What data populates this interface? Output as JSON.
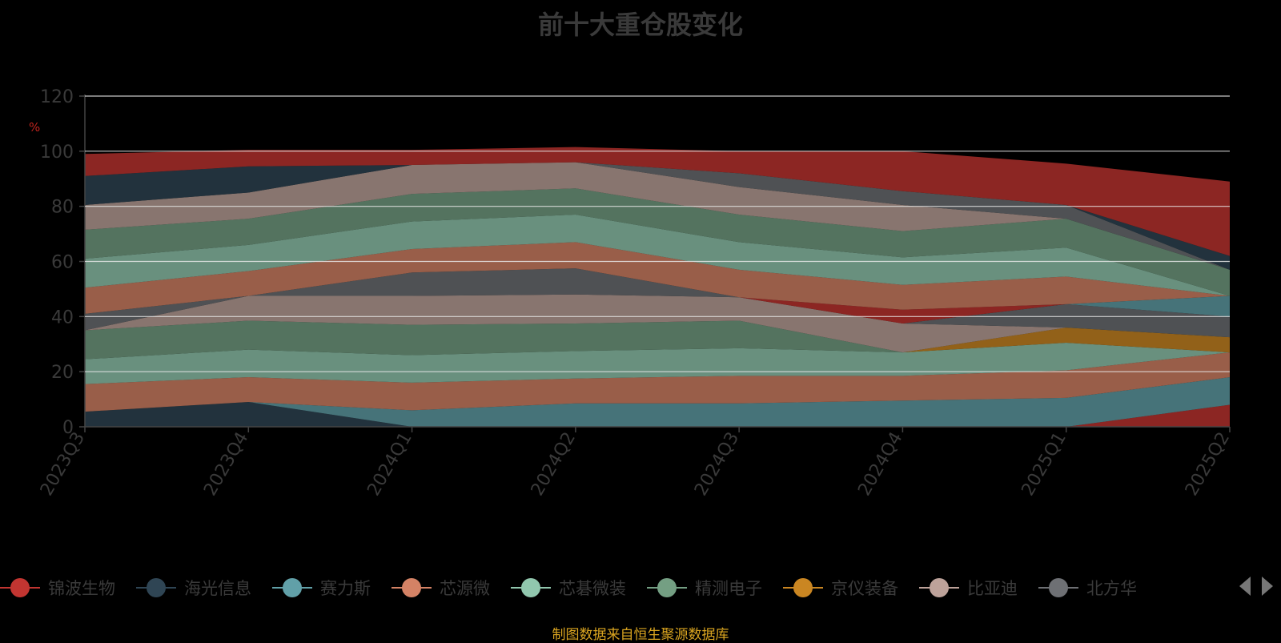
{
  "title": "前十大重仓股变化",
  "source_note": "制图数据来自恒生聚源数据库",
  "colors": {
    "background": "#000000",
    "axis_text": "#3a3a3a",
    "unit_text": "#c0241e",
    "source_text": "#d9a420"
  },
  "legend": [
    {
      "name": "锦波生物",
      "color": "#c23531"
    },
    {
      "name": "海光信息",
      "color": "#2f4554"
    },
    {
      "name": "赛力斯",
      "color": "#61a0a8"
    },
    {
      "name": "芯源微",
      "color": "#d48265"
    },
    {
      "name": "芯碁微装",
      "color": "#91c7ae"
    },
    {
      "name": "精测电子",
      "color": "#749f83"
    },
    {
      "name": "京仪装备",
      "color": "#ca8622"
    },
    {
      "name": "比亚迪",
      "color": "#bda29a"
    },
    {
      "name": "北方华",
      "color": "#6e7074"
    }
  ],
  "chart_data": {
    "type": "area",
    "stacked": true,
    "title": "前十大重仓股变化",
    "ylabel": "%",
    "ylim": [
      0,
      120
    ],
    "yticks": [
      0,
      20,
      40,
      60,
      80,
      100,
      120
    ],
    "x": [
      "2023Q3",
      "2023Q4",
      "2024Q1",
      "2024Q2",
      "2024Q3",
      "2024Q4",
      "2025Q1",
      "2025Q2"
    ],
    "grid": true,
    "legend_position": "bottom",
    "series": [
      {
        "color": "#c23531",
        "values": [
          0,
          0,
          0,
          0,
          0,
          0,
          0,
          8
        ]
      },
      {
        "color": "#2f4554",
        "values": [
          5.5,
          9,
          0,
          0,
          0,
          0,
          0,
          0
        ]
      },
      {
        "color": "#61a0a8",
        "values": [
          0,
          0,
          6,
          8.5,
          8.5,
          9.5,
          10.5,
          10
        ]
      },
      {
        "color": "#d48265",
        "values": [
          10,
          9,
          10,
          9,
          10,
          9,
          10,
          9
        ]
      },
      {
        "color": "#91c7ae",
        "values": [
          9,
          10,
          10,
          10,
          10,
          8.5,
          10,
          0
        ]
      },
      {
        "color": "#749f83",
        "values": [
          10.5,
          10.5,
          11,
          10,
          10,
          0,
          0,
          0
        ]
      },
      {
        "color": "#ca8622",
        "values": [
          0,
          0,
          0,
          0,
          0,
          0,
          5.5,
          5.5
        ]
      },
      {
        "color": "#bda29a",
        "values": [
          0,
          9,
          10.5,
          10.5,
          8.5,
          10.5,
          0,
          0
        ]
      },
      {
        "color": "#6e7074",
        "values": [
          6,
          0,
          8.5,
          9.5,
          0,
          0,
          8.5,
          7.5
        ]
      },
      {
        "color": "#c23531",
        "values": [
          0,
          0,
          0,
          0,
          0,
          5,
          0,
          0
        ]
      },
      {
        "color": "#2f4554",
        "values": [
          0,
          0,
          0,
          0,
          0,
          0,
          0,
          0
        ]
      },
      {
        "color": "#61a0a8",
        "values": [
          0,
          0,
          0,
          0,
          0,
          0,
          0,
          7.5
        ]
      },
      {
        "color": "#d48265",
        "values": [
          9.5,
          9,
          8.5,
          9.5,
          10,
          9,
          10,
          0
        ]
      },
      {
        "color": "#91c7ae",
        "values": [
          10.5,
          9.5,
          10,
          10,
          10,
          10,
          10.5,
          0
        ]
      },
      {
        "color": "#749f83",
        "values": [
          10.5,
          9.5,
          10,
          9.5,
          10,
          9.5,
          10.5,
          9.5
        ]
      },
      {
        "color": "#bda29a",
        "values": [
          9,
          9.5,
          10.5,
          9.5,
          10,
          9.5,
          0,
          0
        ]
      },
      {
        "color": "#6e7074",
        "values": [
          0,
          0,
          0,
          0,
          5,
          5,
          5,
          0
        ]
      },
      {
        "color": "#2f4554",
        "values": [
          10.5,
          9.5,
          0,
          0,
          0,
          0,
          0,
          5
        ]
      },
      {
        "color": "#c23531",
        "values": [
          8,
          6,
          5.5,
          5.5,
          8,
          14.5,
          15,
          27
        ]
      }
    ]
  }
}
